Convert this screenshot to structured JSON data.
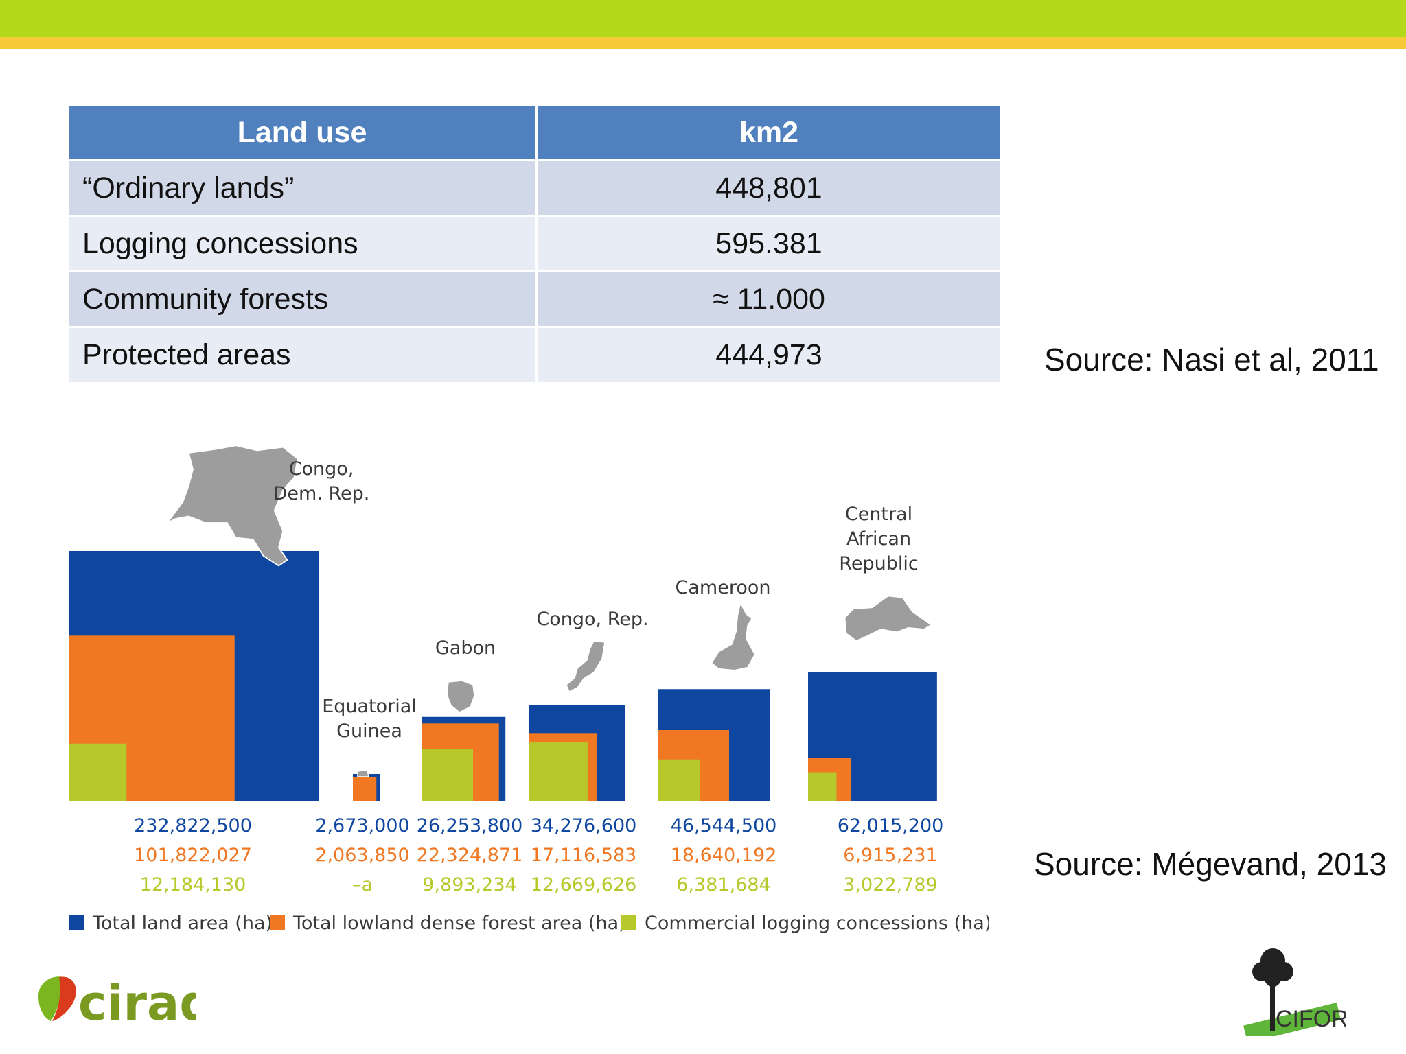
{
  "table": {
    "headers": [
      "Land use",
      "km2"
    ],
    "rows": [
      {
        "label": "“Ordinary lands”",
        "value": "448,801"
      },
      {
        "label": "Logging concessions",
        "value": "595.381"
      },
      {
        "label": "Community forests",
        "value": "≈ 11.000"
      },
      {
        "label": "Protected areas",
        "value": "444,973"
      }
    ]
  },
  "sources": {
    "table": "Source: Nasi et al, 2011",
    "chart": "Source: Mégevand, 2013"
  },
  "colors": {
    "top_bar": "#b3d91a",
    "top_stripe": "#f7c937",
    "header_fill": "#5081be",
    "total": "#0f47a0",
    "lowland": "#f07823",
    "logging": "#b6c82a"
  },
  "chart_data": {
    "type": "nested-squares",
    "series": [
      {
        "name": "Total land area (ha)",
        "color": "#0f47a0"
      },
      {
        "name": "Total lowland dense forest area (ha)",
        "color": "#f07823"
      },
      {
        "name": "Commercial logging concessions (ha)",
        "color": "#b6c82a"
      }
    ],
    "countries": [
      {
        "name": [
          "Congo,",
          "Dem. Rep."
        ],
        "shape": "drc-map-icon",
        "values": [
          232822500,
          101822027,
          12184130
        ],
        "labels": [
          "232,822,500",
          "101,822,027",
          "12,184,130"
        ]
      },
      {
        "name": [
          "Equatorial",
          "Guinea"
        ],
        "shape": "eq-guinea-map-icon",
        "values": [
          2673000,
          2063850,
          null
        ],
        "labels": [
          "2,673,000",
          "2,063,850",
          "–a"
        ]
      },
      {
        "name": [
          "Gabon"
        ],
        "shape": "gabon-map-icon",
        "values": [
          26253800,
          22324871,
          9893234
        ],
        "labels": [
          "26,253,800",
          "22,324,871",
          "9,893,234"
        ]
      },
      {
        "name": [
          "Congo, Rep."
        ],
        "shape": "congo-rep-map-icon",
        "values": [
          34276600,
          17116583,
          12669626
        ],
        "labels": [
          "34,276,600",
          "17,116,583",
          "12,669,626"
        ]
      },
      {
        "name": [
          "Cameroon"
        ],
        "shape": "cameroon-map-icon",
        "values": [
          46544500,
          18640192,
          6381684
        ],
        "labels": [
          "46,544,500",
          "18,640,192",
          "6,381,684"
        ]
      },
      {
        "name": [
          "Central",
          "African",
          "Republic"
        ],
        "shape": "car-map-icon",
        "values": [
          62015200,
          6915231,
          3022789
        ],
        "labels": [
          "62,015,200",
          "6,915,231",
          "3,022,789"
        ]
      }
    ]
  },
  "logos": {
    "cirad": "cirad",
    "cifor": "CIFOR"
  }
}
